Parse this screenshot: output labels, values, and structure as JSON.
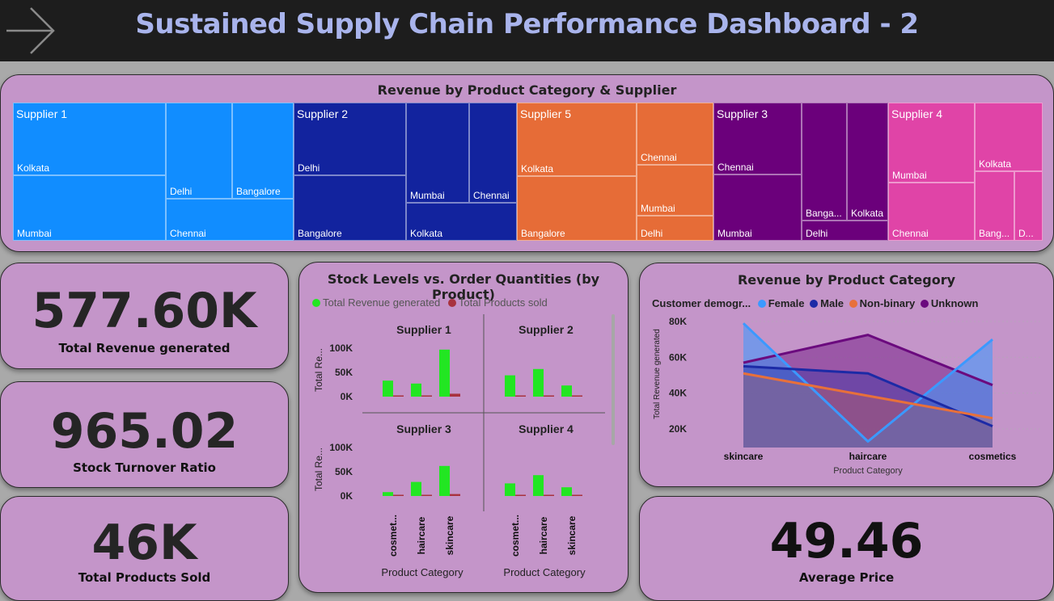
{
  "dashboard": {
    "title": "Sustained Supply Chain Performance Dashboard - 2",
    "back_icon": "arrow-right-icon"
  },
  "treemap": {
    "title": "Revenue by Product Category & Supplier",
    "suppliers": [
      {
        "name": "Supplier 1",
        "color": "#118dff",
        "locations": [
          "Kolkata",
          "Mumbai",
          "Delhi",
          "Bangalore",
          "Chennai"
        ]
      },
      {
        "name": "Supplier 2",
        "color": "#12239e",
        "locations": [
          "Delhi",
          "Bangalore",
          "Mumbai",
          "Chennai",
          "Kolkata"
        ]
      },
      {
        "name": "Supplier 5",
        "color": "#e66c37",
        "locations": [
          "Kolkata",
          "Chennai",
          "Mumbai",
          "Bangalore",
          "Delhi"
        ]
      },
      {
        "name": "Supplier 3",
        "color": "#6b007b",
        "locations": [
          "Chennai",
          "Mumbai",
          "Banga...",
          "Kolkata",
          "Delhi"
        ]
      },
      {
        "name": "Supplier 4",
        "color": "#e044a7",
        "locations": [
          "Mumbai",
          "Chennai",
          "Kolkata",
          "Bang...",
          "D..."
        ]
      }
    ]
  },
  "kpis": {
    "revenue": {
      "value": "577.60K",
      "label": "Total Revenue generated"
    },
    "turnover": {
      "value": "965.02",
      "label": "Stock Turnover Ratio"
    },
    "products_sold": {
      "value": "46K",
      "label": "Total Products Sold"
    },
    "avg_price": {
      "value": "49.46",
      "label": "Average Price"
    }
  },
  "stock_chart": {
    "title": "Stock Levels vs. Order Quantities (by Product)",
    "legend": [
      "Total Revenue generated",
      "Total Products sold"
    ],
    "colors": {
      "revenue": "#22e622",
      "sold": "#a8323e"
    },
    "y_label": "Total Re...",
    "y_ticks": [
      "100K",
      "50K",
      "0K"
    ],
    "x_label": "Product Category",
    "categories_display": [
      "cosmet...",
      "haircare",
      "skincare"
    ]
  },
  "line_chart": {
    "title": "Revenue by Product Category",
    "legend_title": "Customer demogr...",
    "y_label": "Total Revenue generated",
    "x_label": "Product Category",
    "y_ticks": [
      "80K",
      "60K",
      "40K",
      "20K"
    ],
    "colors": {
      "Female": "#3b99ff",
      "Male": "#1c2aa6",
      "Non-binary": "#e8703a",
      "Unknown": "#6b0a7e"
    }
  },
  "chart_data": [
    {
      "type": "bar",
      "title": "Stock Levels vs. Order Quantities (by Product)",
      "facets": [
        "Supplier 1",
        "Supplier 2",
        "Supplier 3",
        "Supplier 4"
      ],
      "categories": [
        "cosmetics",
        "haircare",
        "skincare"
      ],
      "ylim": [
        0,
        110000
      ],
      "series_names": [
        "Total Revenue generated",
        "Total Products sold"
      ],
      "panels": [
        {
          "name": "Supplier 1",
          "revenue": [
            33000,
            27000,
            97000
          ],
          "sold": [
            1500,
            1200,
            6000
          ]
        },
        {
          "name": "Supplier 2",
          "revenue": [
            44000,
            57000,
            23000
          ],
          "sold": [
            2200,
            2500,
            1500
          ]
        },
        {
          "name": "Supplier 3",
          "revenue": [
            8000,
            29000,
            62000
          ],
          "sold": [
            800,
            1500,
            4000
          ]
        },
        {
          "name": "Supplier 4",
          "revenue": [
            26000,
            43000,
            18000
          ],
          "sold": [
            1200,
            2500,
            1000
          ]
        }
      ]
    },
    {
      "type": "area",
      "title": "Revenue by Product Category",
      "categories": [
        "skincare",
        "haircare",
        "cosmetics"
      ],
      "xlabel": "Product Category",
      "ylabel": "Total Revenue generated",
      "ylim": [
        10000,
        85000
      ],
      "series": [
        {
          "name": "Female",
          "values": [
            79000,
            13000,
            70000
          ]
        },
        {
          "name": "Male",
          "values": [
            55000,
            51000,
            21500
          ]
        },
        {
          "name": "Non-binary",
          "values": [
            51000,
            38500,
            26000
          ]
        },
        {
          "name": "Unknown",
          "values": [
            57000,
            72500,
            44500
          ]
        }
      ]
    }
  ]
}
